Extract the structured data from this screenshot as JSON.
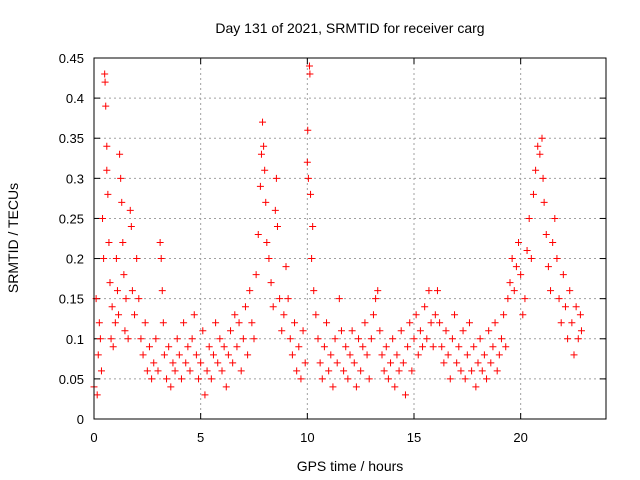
{
  "chart_data": {
    "type": "scatter",
    "title": "Day 131 of 2021, SRMTID for receiver carg",
    "xlabel": "GPS time / hours",
    "ylabel": "SRMTID / TECUs",
    "xlim": [
      0,
      24
    ],
    "ylim": [
      0,
      0.45
    ],
    "xticks": [
      0,
      5,
      10,
      15,
      20
    ],
    "xtick_labels": [
      "0",
      "5",
      "10",
      "15",
      "20"
    ],
    "yticks": [
      0,
      0.05,
      0.1,
      0.15,
      0.2,
      0.25,
      0.3,
      0.35,
      0.4,
      0.45
    ],
    "ytick_labels": [
      "0",
      "0.05",
      "0.1",
      "0.15",
      "0.2",
      "0.25",
      "0.3",
      "0.35",
      "0.4",
      "0.45"
    ],
    "grid": true,
    "marker": "+",
    "color": "#ff0000",
    "series": [
      {
        "name": "SRMTID",
        "points": [
          [
            0.0,
            0.04
          ],
          [
            0.1,
            0.15
          ],
          [
            0.15,
            0.03
          ],
          [
            0.2,
            0.08
          ],
          [
            0.25,
            0.12
          ],
          [
            0.3,
            0.1
          ],
          [
            0.35,
            0.06
          ],
          [
            0.4,
            0.25
          ],
          [
            0.45,
            0.2
          ],
          [
            0.5,
            0.43
          ],
          [
            0.52,
            0.42
          ],
          [
            0.55,
            0.39
          ],
          [
            0.6,
            0.34
          ],
          [
            0.6,
            0.31
          ],
          [
            0.65,
            0.28
          ],
          [
            0.7,
            0.22
          ],
          [
            0.75,
            0.17
          ],
          [
            0.8,
            0.1
          ],
          [
            0.85,
            0.14
          ],
          [
            0.9,
            0.09
          ],
          [
            1.0,
            0.12
          ],
          [
            1.05,
            0.2
          ],
          [
            1.1,
            0.16
          ],
          [
            1.15,
            0.13
          ],
          [
            1.2,
            0.33
          ],
          [
            1.25,
            0.3
          ],
          [
            1.3,
            0.27
          ],
          [
            1.35,
            0.22
          ],
          [
            1.4,
            0.18
          ],
          [
            1.45,
            0.11
          ],
          [
            1.5,
            0.15
          ],
          [
            1.6,
            0.1
          ],
          [
            1.7,
            0.26
          ],
          [
            1.75,
            0.24
          ],
          [
            1.8,
            0.16
          ],
          [
            1.9,
            0.13
          ],
          [
            2.0,
            0.2
          ],
          [
            2.1,
            0.15
          ],
          [
            2.2,
            0.1
          ],
          [
            2.3,
            0.08
          ],
          [
            2.4,
            0.12
          ],
          [
            2.5,
            0.06
          ],
          [
            2.6,
            0.09
          ],
          [
            2.7,
            0.05
          ],
          [
            2.8,
            0.07
          ],
          [
            2.9,
            0.1
          ],
          [
            3.0,
            0.06
          ],
          [
            3.1,
            0.22
          ],
          [
            3.15,
            0.2
          ],
          [
            3.2,
            0.16
          ],
          [
            3.25,
            0.12
          ],
          [
            3.3,
            0.08
          ],
          [
            3.4,
            0.05
          ],
          [
            3.5,
            0.09
          ],
          [
            3.6,
            0.04
          ],
          [
            3.7,
            0.07
          ],
          [
            3.8,
            0.06
          ],
          [
            3.9,
            0.1
          ],
          [
            4.0,
            0.08
          ],
          [
            4.1,
            0.05
          ],
          [
            4.2,
            0.12
          ],
          [
            4.3,
            0.07
          ],
          [
            4.4,
            0.09
          ],
          [
            4.5,
            0.06
          ],
          [
            4.6,
            0.1
          ],
          [
            4.7,
            0.13
          ],
          [
            4.8,
            0.08
          ],
          [
            4.9,
            0.05
          ],
          [
            5.0,
            0.07
          ],
          [
            5.1,
            0.11
          ],
          [
            5.2,
            0.03
          ],
          [
            5.3,
            0.06
          ],
          [
            5.4,
            0.09
          ],
          [
            5.5,
            0.05
          ],
          [
            5.6,
            0.08
          ],
          [
            5.7,
            0.12
          ],
          [
            5.8,
            0.07
          ],
          [
            5.9,
            0.1
          ],
          [
            6.0,
            0.06
          ],
          [
            6.1,
            0.09
          ],
          [
            6.2,
            0.04
          ],
          [
            6.3,
            0.08
          ],
          [
            6.4,
            0.11
          ],
          [
            6.5,
            0.07
          ],
          [
            6.6,
            0.13
          ],
          [
            6.7,
            0.09
          ],
          [
            6.8,
            0.12
          ],
          [
            6.9,
            0.06
          ],
          [
            7.0,
            0.1
          ],
          [
            7.1,
            0.14
          ],
          [
            7.2,
            0.08
          ],
          [
            7.3,
            0.16
          ],
          [
            7.4,
            0.12
          ],
          [
            7.5,
            0.1
          ],
          [
            7.6,
            0.18
          ],
          [
            7.7,
            0.23
          ],
          [
            7.8,
            0.29
          ],
          [
            7.85,
            0.33
          ],
          [
            7.9,
            0.37
          ],
          [
            7.95,
            0.34
          ],
          [
            8.0,
            0.31
          ],
          [
            8.05,
            0.27
          ],
          [
            8.1,
            0.22
          ],
          [
            8.2,
            0.2
          ],
          [
            8.3,
            0.17
          ],
          [
            8.4,
            0.14
          ],
          [
            8.5,
            0.26
          ],
          [
            8.55,
            0.3
          ],
          [
            8.6,
            0.24
          ],
          [
            8.7,
            0.15
          ],
          [
            8.8,
            0.11
          ],
          [
            8.9,
            0.13
          ],
          [
            9.0,
            0.19
          ],
          [
            9.1,
            0.15
          ],
          [
            9.2,
            0.1
          ],
          [
            9.3,
            0.08
          ],
          [
            9.4,
            0.12
          ],
          [
            9.5,
            0.06
          ],
          [
            9.6,
            0.09
          ],
          [
            9.7,
            0.05
          ],
          [
            9.8,
            0.11
          ],
          [
            9.9,
            0.07
          ],
          [
            10.0,
            0.32
          ],
          [
            10.02,
            0.36
          ],
          [
            10.05,
            0.3
          ],
          [
            10.1,
            0.44
          ],
          [
            10.12,
            0.43
          ],
          [
            10.15,
            0.28
          ],
          [
            10.2,
            0.2
          ],
          [
            10.25,
            0.24
          ],
          [
            10.3,
            0.16
          ],
          [
            10.4,
            0.13
          ],
          [
            10.5,
            0.1
          ],
          [
            10.6,
            0.07
          ],
          [
            10.7,
            0.05
          ],
          [
            10.8,
            0.09
          ],
          [
            10.9,
            0.12
          ],
          [
            11.0,
            0.06
          ],
          [
            11.1,
            0.08
          ],
          [
            11.2,
            0.04
          ],
          [
            11.3,
            0.1
          ],
          [
            11.4,
            0.07
          ],
          [
            11.5,
            0.15
          ],
          [
            11.6,
            0.11
          ],
          [
            11.7,
            0.06
          ],
          [
            11.8,
            0.09
          ],
          [
            11.9,
            0.05
          ],
          [
            12.0,
            0.08
          ],
          [
            12.1,
            0.11
          ],
          [
            12.2,
            0.07
          ],
          [
            12.3,
            0.04
          ],
          [
            12.4,
            0.1
          ],
          [
            12.5,
            0.06
          ],
          [
            12.6,
            0.09
          ],
          [
            12.7,
            0.12
          ],
          [
            12.8,
            0.08
          ],
          [
            12.9,
            0.05
          ],
          [
            13.0,
            0.1
          ],
          [
            13.1,
            0.13
          ],
          [
            13.2,
            0.15
          ],
          [
            13.3,
            0.16
          ],
          [
            13.4,
            0.11
          ],
          [
            13.5,
            0.08
          ],
          [
            13.6,
            0.06
          ],
          [
            13.7,
            0.09
          ],
          [
            13.8,
            0.05
          ],
          [
            13.9,
            0.07
          ],
          [
            14.0,
            0.1
          ],
          [
            14.1,
            0.04
          ],
          [
            14.2,
            0.08
          ],
          [
            14.3,
            0.06
          ],
          [
            14.4,
            0.11
          ],
          [
            14.5,
            0.07
          ],
          [
            14.6,
            0.03
          ],
          [
            14.7,
            0.09
          ],
          [
            14.8,
            0.12
          ],
          [
            14.9,
            0.06
          ],
          [
            15.0,
            0.1
          ],
          [
            15.1,
            0.13
          ],
          [
            15.2,
            0.08
          ],
          [
            15.3,
            0.11
          ],
          [
            15.4,
            0.09
          ],
          [
            15.5,
            0.14
          ],
          [
            15.6,
            0.1
          ],
          [
            15.7,
            0.16
          ],
          [
            15.8,
            0.12
          ],
          [
            15.9,
            0.09
          ],
          [
            16.0,
            0.13
          ],
          [
            16.1,
            0.16
          ],
          [
            16.2,
            0.12
          ],
          [
            16.3,
            0.09
          ],
          [
            16.4,
            0.07
          ],
          [
            16.5,
            0.11
          ],
          [
            16.6,
            0.08
          ],
          [
            16.7,
            0.05
          ],
          [
            16.8,
            0.1
          ],
          [
            16.9,
            0.13
          ],
          [
            17.0,
            0.07
          ],
          [
            17.1,
            0.09
          ],
          [
            17.2,
            0.06
          ],
          [
            17.3,
            0.11
          ],
          [
            17.4,
            0.05
          ],
          [
            17.5,
            0.08
          ],
          [
            17.6,
            0.12
          ],
          [
            17.7,
            0.06
          ],
          [
            17.8,
            0.09
          ],
          [
            17.9,
            0.04
          ],
          [
            18.0,
            0.07
          ],
          [
            18.1,
            0.1
          ],
          [
            18.2,
            0.06
          ],
          [
            18.3,
            0.08
          ],
          [
            18.4,
            0.05
          ],
          [
            18.5,
            0.11
          ],
          [
            18.6,
            0.07
          ],
          [
            18.7,
            0.09
          ],
          [
            18.8,
            0.12
          ],
          [
            18.9,
            0.06
          ],
          [
            19.0,
            0.08
          ],
          [
            19.1,
            0.1
          ],
          [
            19.2,
            0.13
          ],
          [
            19.3,
            0.09
          ],
          [
            19.4,
            0.15
          ],
          [
            19.5,
            0.17
          ],
          [
            19.6,
            0.2
          ],
          [
            19.7,
            0.16
          ],
          [
            19.8,
            0.19
          ],
          [
            19.9,
            0.22
          ],
          [
            20.0,
            0.18
          ],
          [
            20.1,
            0.13
          ],
          [
            20.2,
            0.15
          ],
          [
            20.3,
            0.21
          ],
          [
            20.4,
            0.25
          ],
          [
            20.5,
            0.2
          ],
          [
            20.6,
            0.28
          ],
          [
            20.7,
            0.31
          ],
          [
            20.8,
            0.34
          ],
          [
            20.9,
            0.33
          ],
          [
            21.0,
            0.35
          ],
          [
            21.05,
            0.3
          ],
          [
            21.1,
            0.27
          ],
          [
            21.2,
            0.23
          ],
          [
            21.3,
            0.19
          ],
          [
            21.4,
            0.16
          ],
          [
            21.5,
            0.22
          ],
          [
            21.6,
            0.25
          ],
          [
            21.7,
            0.2
          ],
          [
            21.8,
            0.15
          ],
          [
            21.9,
            0.12
          ],
          [
            22.0,
            0.18
          ],
          [
            22.1,
            0.14
          ],
          [
            22.2,
            0.1
          ],
          [
            22.3,
            0.16
          ],
          [
            22.4,
            0.12
          ],
          [
            22.5,
            0.08
          ],
          [
            22.6,
            0.14
          ],
          [
            22.7,
            0.1
          ],
          [
            22.8,
            0.13
          ],
          [
            22.85,
            0.11
          ]
        ]
      }
    ]
  }
}
